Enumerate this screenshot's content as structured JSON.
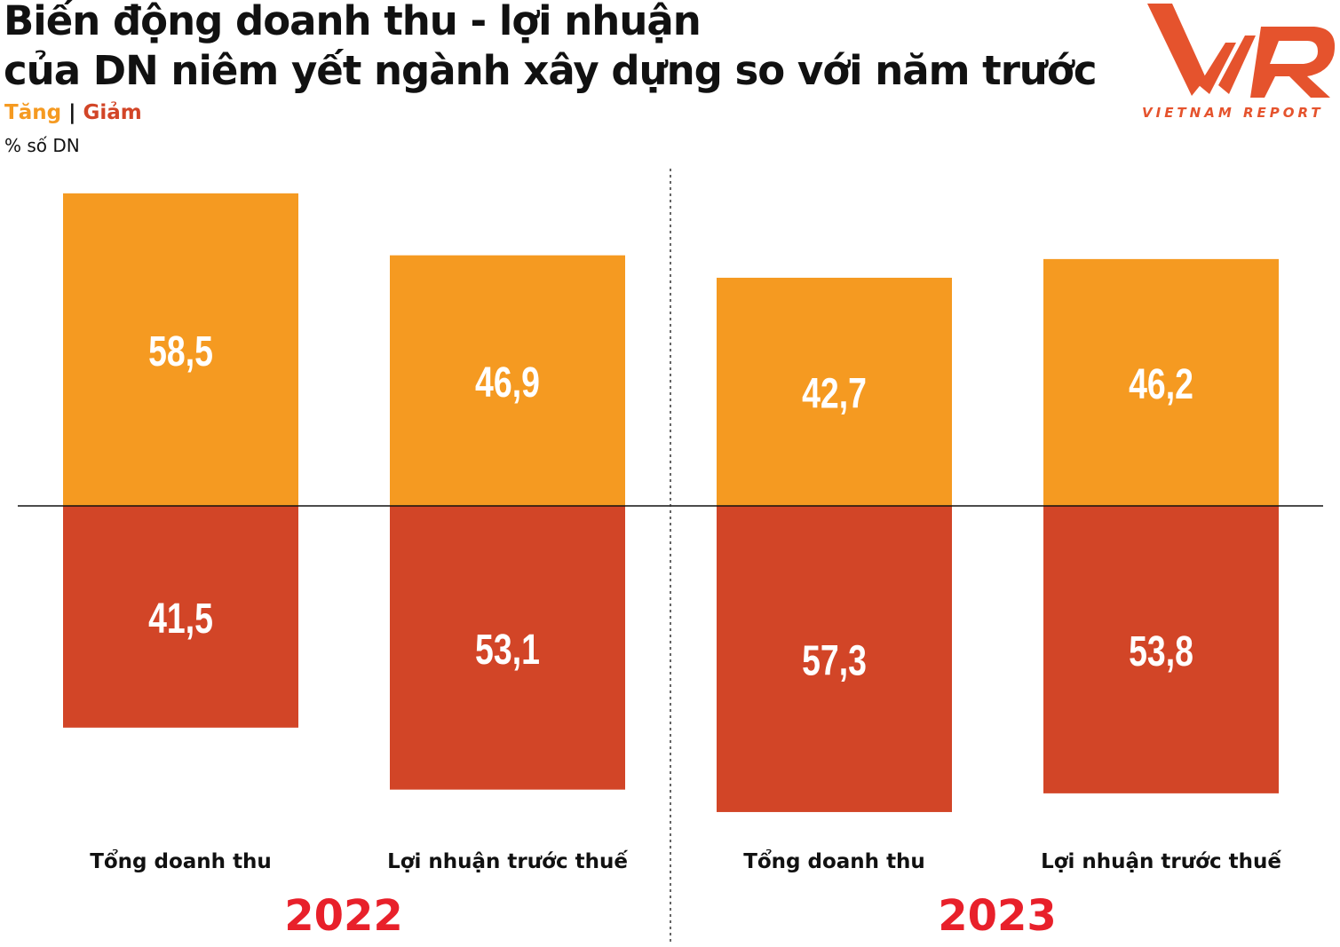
{
  "header": {
    "title_line1": "Biến động doanh thu - lợi nhuận",
    "title_line2": "của DN niêm yết ngành xây dựng so với năm trước",
    "legend_increase": "Tăng",
    "legend_separator": "|",
    "legend_decrease": "Giảm",
    "unit": "% số DN",
    "logo_text": "VIETNAM REPORT"
  },
  "colors": {
    "increase": "#F59A21",
    "decrease": "#D24527",
    "year": "#E8202A",
    "logo": "#E5532D"
  },
  "chart_data": {
    "type": "bar",
    "stacked": "diverging",
    "unit": "% số DN",
    "groups": [
      {
        "year": "2022",
        "categories": [
          "Tổng doanh thu",
          "Lợi nhuận trước thuế"
        ]
      },
      {
        "year": "2023",
        "categories": [
          "Tổng doanh thu",
          "Lợi nhuận trước thuế"
        ]
      }
    ],
    "categories": [
      "Tổng doanh thu",
      "Lợi nhuận trước thuế",
      "Tổng doanh thu",
      "Lợi nhuận trước thuế"
    ],
    "series": [
      {
        "name": "Tăng",
        "values": [
          58.5,
          46.9,
          42.7,
          46.2
        ],
        "labels": [
          "58,5",
          "46,9",
          "42,7",
          "46,2"
        ]
      },
      {
        "name": "Giảm",
        "values": [
          41.5,
          53.1,
          57.3,
          53.8
        ],
        "labels": [
          "41,5",
          "53,1",
          "57,3",
          "53,8"
        ]
      }
    ],
    "grid": false
  }
}
